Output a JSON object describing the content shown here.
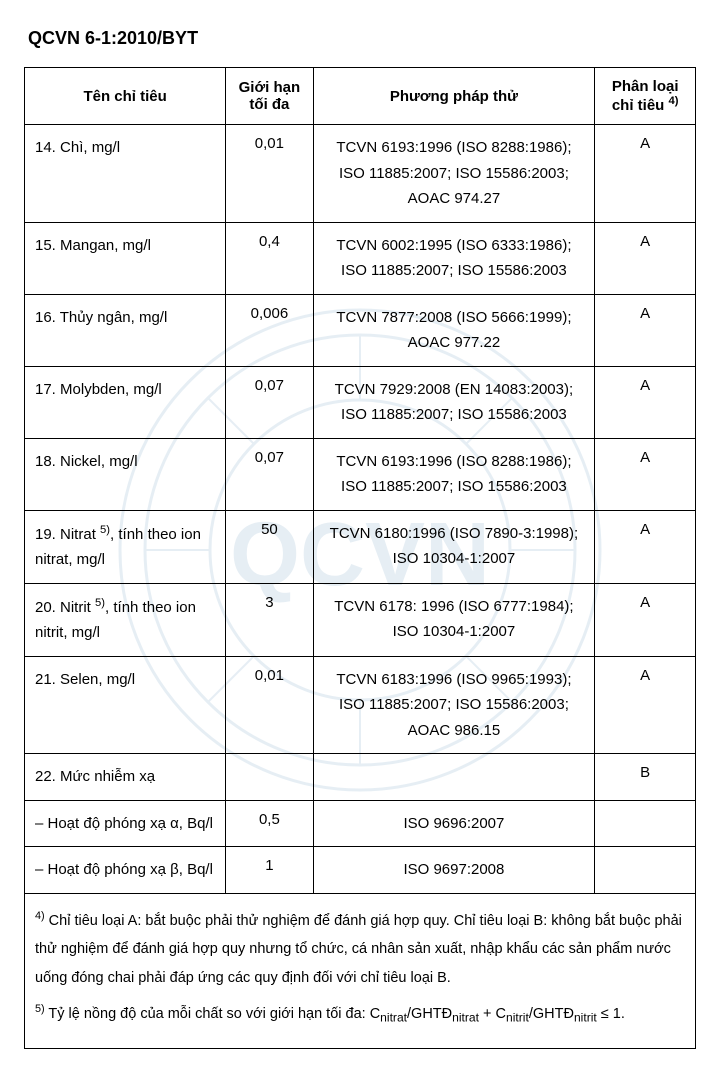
{
  "doc_title": "QCVN 6-1:2010/BYT",
  "headers": {
    "name": "Tên chỉ tiêu",
    "limit": "Giới hạn tối đa",
    "method": "Phương pháp thử",
    "class_html": "Phân loại chỉ tiêu <sup>4)</sup>"
  },
  "rows": [
    {
      "name_html": "14. Chì, mg/l",
      "limit": "0,01",
      "method": "TCVN 6193:1996 (ISO 8288:1986); ISO 11885:2007; ISO 15586:2003; AOAC 974.27",
      "class": "A"
    },
    {
      "name_html": "15. Mangan, mg/l",
      "limit": "0,4",
      "method": "TCVN 6002:1995 (ISO 6333:1986); ISO 11885:2007; ISO 15586:2003",
      "class": "A"
    },
    {
      "name_html": "16. Thủy ngân, mg/l",
      "limit": "0,006",
      "method": "TCVN 7877:2008 (ISO 5666:1999); AOAC 977.22",
      "class": "A"
    },
    {
      "name_html": "17. Molybden, mg/l",
      "limit": "0,07",
      "method": "TCVN 7929:2008 (EN 14083:2003); ISO 11885:2007; ISO 15586:2003",
      "class": "A"
    },
    {
      "name_html": "18. Nickel, mg/l",
      "limit": "0,07",
      "method": "TCVN 6193:1996 (ISO 8288:1986); ISO 11885:2007; ISO 15586:2003",
      "class": "A"
    },
    {
      "name_html": "19. Nitrat <sup>5)</sup>, tính theo ion nitrat, mg/l",
      "limit": "50",
      "method": "TCVN 6180:1996 (ISO 7890-3:1998); ISO 10304-1:2007",
      "class": "A"
    },
    {
      "name_html": "20. Nitrit <sup>5)</sup>, tính theo ion nitrit, mg/l",
      "limit": "3",
      "method": "TCVN 6178: 1996 (ISO 6777:1984); ISO 10304-1:2007",
      "class": "A"
    },
    {
      "name_html": "21. Selen, mg/l",
      "limit": "0,01",
      "method": "TCVN 6183:1996 (ISO 9965:1993); ISO 11885:2007; ISO 15586:2003; AOAC 986.15",
      "class": "A"
    },
    {
      "name_html": "22. Mức nhiễm xạ",
      "limit": "",
      "method": "",
      "class": "B"
    },
    {
      "name_html": "– Hoạt độ phóng xạ α, Bq/l",
      "limit": "0,5",
      "method": "ISO 9696:2007",
      "class": ""
    },
    {
      "name_html": "– Hoạt độ phóng xạ β, Bq/l",
      "limit": "1",
      "method": "ISO 9697:2008",
      "class": ""
    }
  ],
  "footnotes": {
    "note4_html": "<sup>4)</sup> Chỉ tiêu loại A: bắt buộc phải thử nghiệm để đánh giá hợp quy. Chỉ tiêu loại B: không bắt buộc phải thử nghiệm để đánh giá hợp quy nhưng tổ chức, cá nhân sản xuất, nhập khẩu các sản phẩm nước uống đóng chai phải đáp ứng các quy định đối với chỉ tiêu loại B.",
    "note5_html": "<sup>5)</sup> Tỷ lệ nồng độ của mỗi chất so với giới hạn tối đa: C<sub>nitrat</sub>/GHTĐ<sub>nitrat</sub> + C<sub>nitrit</sub>/GHTĐ<sub>nitrit</sub> ≤ 1."
  },
  "watermark": {
    "stroke": "#3a7aa8",
    "letters": "QCVN"
  }
}
